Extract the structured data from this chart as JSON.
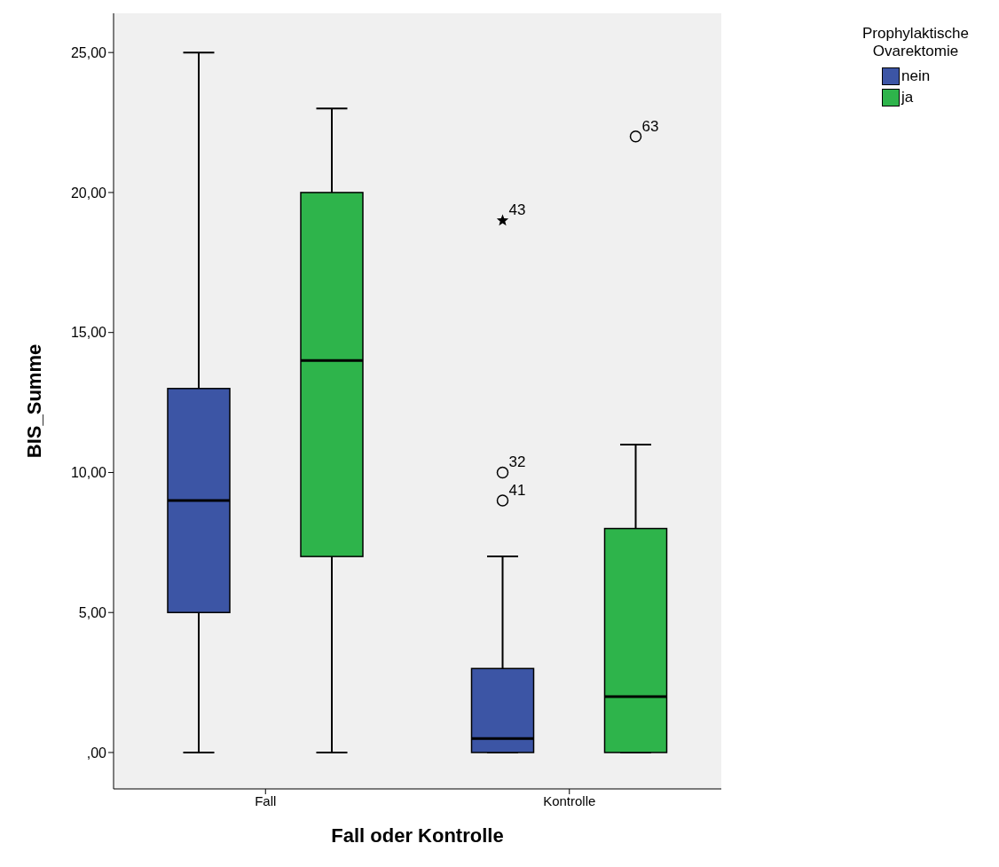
{
  "chart_data": {
    "type": "box",
    "xlabel": "Fall oder Kontrolle",
    "ylabel": "BIS_Summe",
    "legend_title": "Prophylaktische Ovarektomie",
    "legend": "top right",
    "categories": [
      "Fall",
      "Kontrolle"
    ],
    "ylim": [
      -1.3,
      26.4
    ],
    "yticks": [
      {
        "value": 0,
        "label": ",00"
      },
      {
        "value": 5,
        "label": "5,00"
      },
      {
        "value": 10,
        "label": "10,00"
      },
      {
        "value": 15,
        "label": "15,00"
      },
      {
        "value": 20,
        "label": "20,00"
      },
      {
        "value": 25,
        "label": "25,00"
      }
    ],
    "series": [
      {
        "name": "nein",
        "color": "#3c55a5",
        "boxes": [
          {
            "low": 0,
            "q1": 5,
            "median": 9,
            "q3": 13,
            "high": 25
          },
          {
            "low": 0,
            "q1": 0,
            "median": 0.5,
            "q3": 3,
            "high": 7,
            "outliers": [
              9,
              10,
              19
            ]
          }
        ]
      },
      {
        "name": "ja",
        "color": "#2eb44b",
        "boxes": [
          {
            "low": 0,
            "q1": 7,
            "median": 14,
            "q3": 20,
            "high": 23
          },
          {
            "low": 0,
            "q1": 0,
            "median": 2,
            "q3": 8,
            "high": 11,
            "outliers": [
              22
            ]
          }
        ]
      }
    ],
    "annotations": [
      "41",
      "32",
      "43",
      "63"
    ]
  }
}
